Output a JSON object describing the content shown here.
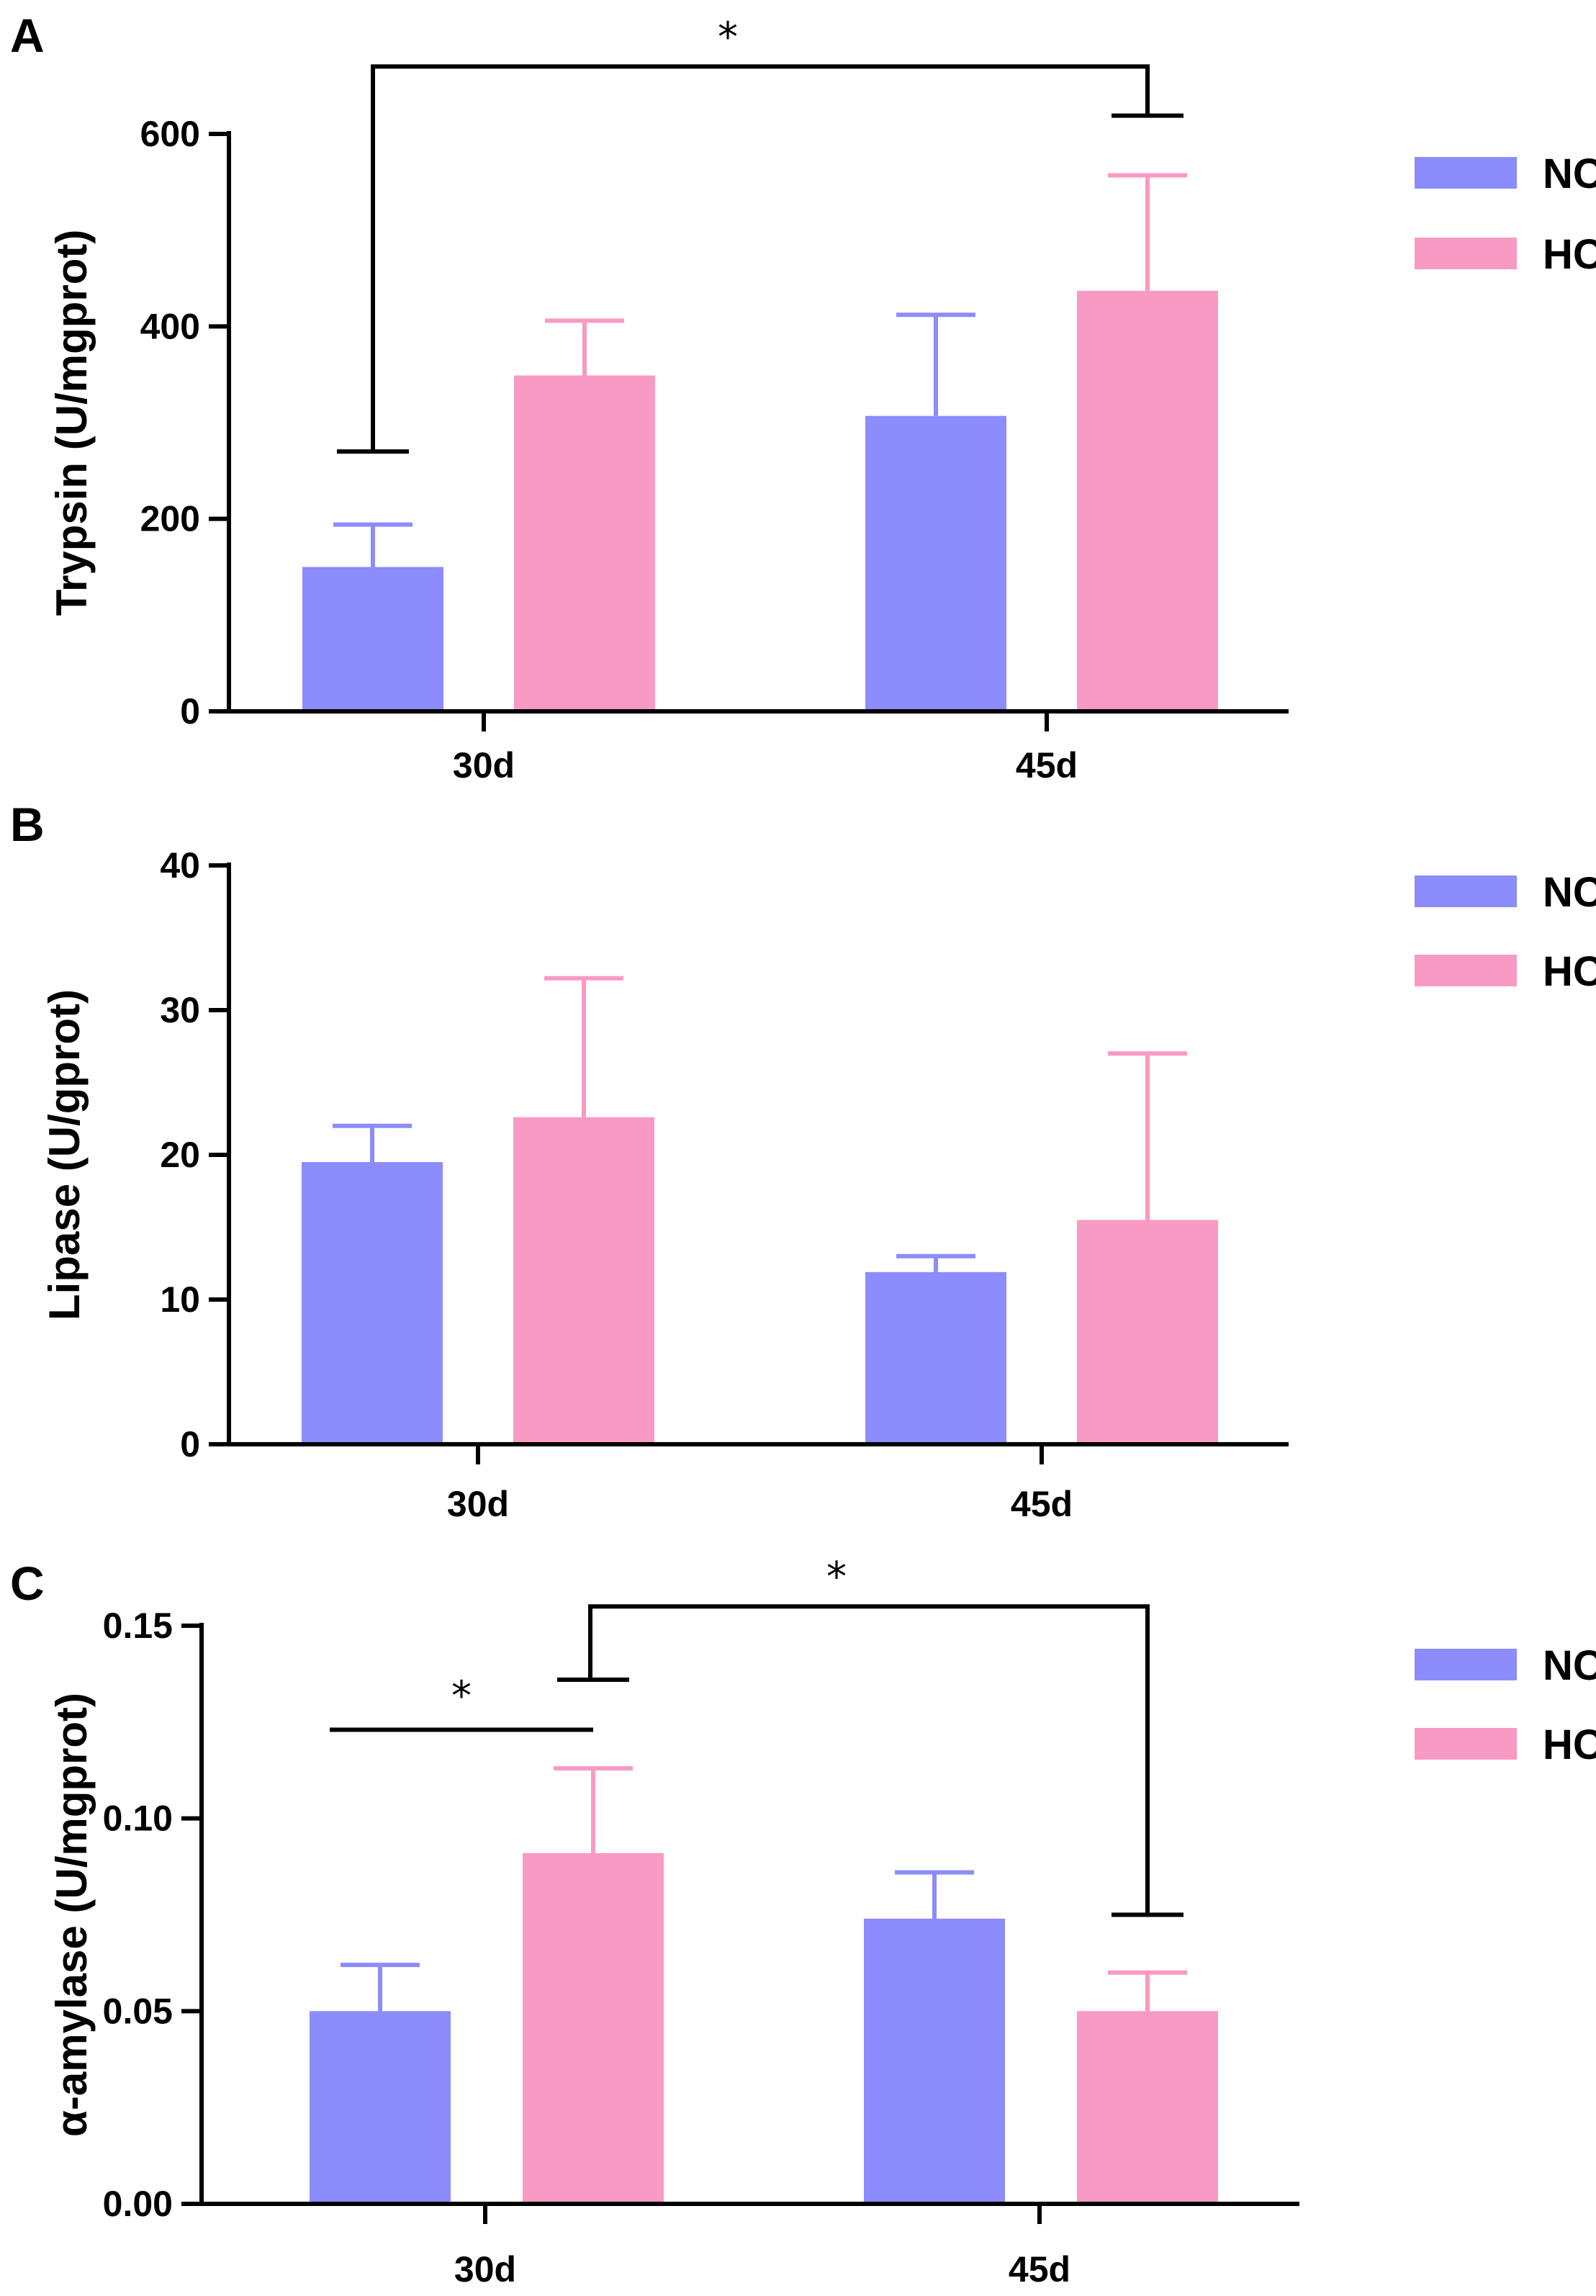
{
  "colors": {
    "NC": "#8c8cfc",
    "HC": "#f89ac4"
  },
  "chart_data": [
    {
      "type": "bar",
      "panel": "A",
      "categories": [
        "30d",
        "45d"
      ],
      "series": [
        {
          "name": "NC",
          "values": [
            150,
            307
          ],
          "errors": [
            44,
            105
          ]
        },
        {
          "name": "HC",
          "values": [
            349,
            437
          ],
          "errors": [
            57,
            120
          ]
        }
      ],
      "ylabel": "Trypsin (U/mgprot)",
      "ylim": [
        0,
        600
      ],
      "yticks": [
        "0",
        "200",
        "400",
        "600"
      ],
      "legend": "top-right",
      "significance": [
        {
          "from": "NC@30d",
          "to": "HC@45d",
          "label": "*",
          "from_level": 270,
          "to_level": 619,
          "top_level": 670
        }
      ]
    },
    {
      "type": "bar",
      "panel": "B",
      "categories": [
        "30d",
        "45d"
      ],
      "series": [
        {
          "name": "NC",
          "values": [
            19.5,
            11.9
          ],
          "errors": [
            2.5,
            1.1
          ]
        },
        {
          "name": "HC",
          "values": [
            22.6,
            15.5
          ],
          "errors": [
            9.6,
            11.5
          ]
        }
      ],
      "ylabel": "Lipase (U/gprot)",
      "ylim": [
        0,
        40
      ],
      "yticks": [
        "0",
        "10",
        "20",
        "30",
        "40"
      ],
      "legend": "top-right",
      "significance": []
    },
    {
      "type": "bar",
      "panel": "C",
      "categories": [
        "30d",
        "45d"
      ],
      "series": [
        {
          "name": "NC",
          "values": [
            0.05,
            0.074
          ],
          "errors": [
            0.012,
            0.012
          ]
        },
        {
          "name": "HC",
          "values": [
            0.091,
            0.05
          ],
          "errors": [
            0.022,
            0.01
          ]
        }
      ],
      "ylabel": "α-amylase (U/mgprot)",
      "ylim": [
        0,
        0.15
      ],
      "yticks": [
        "0.00",
        "0.05",
        "0.10",
        "0.15"
      ],
      "legend": "top-right",
      "significance": [
        {
          "type": "line",
          "from": "NC@30d",
          "to": "HC@30d",
          "label": "*",
          "level": 0.123
        },
        {
          "from": "HC@30d",
          "to": "HC@45d",
          "label": "*",
          "from_level": 0.136,
          "to_level": 0.075,
          "top_level": 0.155
        }
      ]
    }
  ]
}
